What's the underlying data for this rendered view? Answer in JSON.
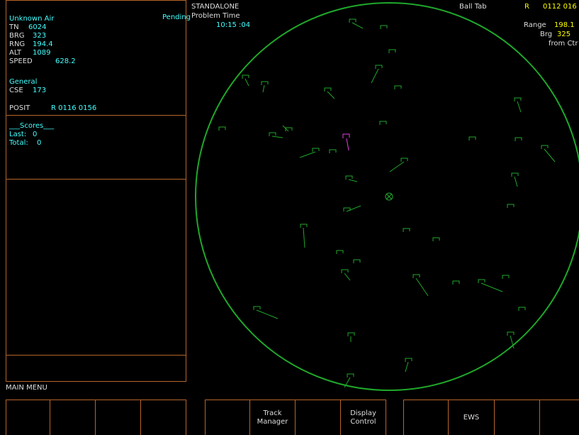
{
  "track_panel": {
    "title": "Unknown Air",
    "status": "Pending",
    "fields": [
      {
        "label": "TN",
        "value": "6024"
      },
      {
        "label": "BRG",
        "value": "323"
      },
      {
        "label": "RNG",
        "value": "194.4"
      },
      {
        "label": "ALT",
        "value": "1089"
      },
      {
        "label": "SPEED",
        "value": "628.2"
      }
    ],
    "general": {
      "title": "General",
      "fields": [
        {
          "label": "CSE",
          "value": "173"
        }
      ]
    },
    "posit": {
      "label": "POSIT",
      "value": "R 0116 0156"
    }
  },
  "scores": {
    "title": "___Scores___",
    "fields": [
      {
        "label": "Last:",
        "value": "0"
      },
      {
        "label": "Total:",
        "value": "0"
      }
    ]
  },
  "main_menu": "MAIN MENU",
  "header": {
    "mode": "STANDALONE",
    "time_label": "Problem Time",
    "time": "10:15 :04"
  },
  "ball_tab": {
    "title": "Ball Tab",
    "ref_label": "R",
    "ref_value": "0112 016",
    "range_label": "Range",
    "range_value": "198.1",
    "brg_label": "Brg",
    "brg_value": "325",
    "note": "from Ctr"
  },
  "buttons": [
    {
      "lines": [
        "Track",
        "Manager"
      ]
    },
    {
      "lines": [
        "Display",
        "Control"
      ]
    },
    {
      "lines": [
        "EWS"
      ]
    }
  ]
}
